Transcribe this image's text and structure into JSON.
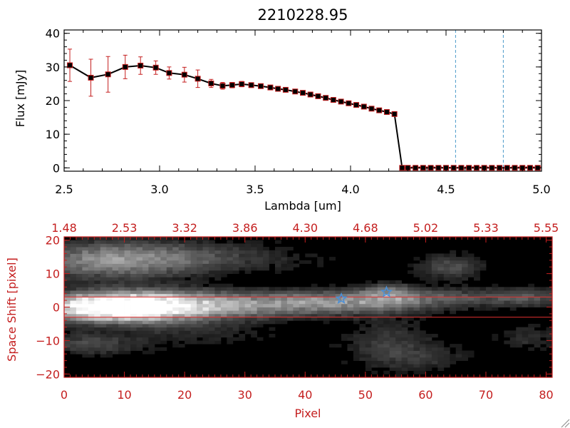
{
  "colors": {
    "axis_top": "#000000",
    "axis_bottom": "#c41e1e",
    "error_bar": "#c41e1e",
    "marker_edge": "#c41e1e",
    "line": "#000000",
    "vline": "#4a9ac9",
    "star": "#4a8fd6",
    "trace_line": "#e03030"
  },
  "chart_data": [
    {
      "type": "line",
      "title": "2210228.95",
      "xlabel": "Lambda [um]",
      "ylabel": "Flux [mJy]",
      "xlim": [
        2.5,
        5.0
      ],
      "ylim": [
        -1,
        41
      ],
      "xticks": [
        2.5,
        3.0,
        3.5,
        4.0,
        4.5,
        5.0
      ],
      "xtick_labels": [
        "2.5",
        "3.0",
        "3.5",
        "4.0",
        "4.5",
        "5.0"
      ],
      "yticks": [
        0,
        10,
        20,
        30,
        40
      ],
      "ytick_labels": [
        "0",
        "10",
        "20",
        "30",
        "40"
      ],
      "grid": false,
      "vlines": [
        4.55,
        4.8
      ],
      "hline": 0.3,
      "series": [
        {
          "x": [
            2.53,
            2.64,
            2.73,
            2.82,
            2.9,
            2.98,
            3.05,
            3.13,
            3.2,
            3.27,
            3.33,
            3.38,
            3.43,
            3.48,
            3.53,
            3.58,
            3.62,
            3.66,
            3.71,
            3.75,
            3.79,
            3.83,
            3.87,
            3.91,
            3.95,
            3.99,
            4.03,
            4.07,
            4.11,
            4.15,
            4.19,
            4.23,
            4.27,
            4.3,
            4.34,
            4.38,
            4.42,
            4.46,
            4.5,
            4.54,
            4.58,
            4.62,
            4.66,
            4.7,
            4.74,
            4.78,
            4.82,
            4.86,
            4.9,
            4.94,
            4.98
          ],
          "y": [
            30.5,
            26.8,
            27.8,
            30.0,
            30.4,
            29.8,
            28.2,
            27.7,
            26.5,
            25.1,
            24.4,
            24.6,
            24.9,
            24.6,
            24.3,
            23.9,
            23.5,
            23.2,
            22.7,
            22.3,
            21.8,
            21.3,
            20.8,
            20.2,
            19.7,
            19.2,
            18.7,
            18.2,
            17.6,
            17.1,
            16.6,
            16.0,
            0,
            0,
            0,
            0,
            0,
            0,
            0,
            0,
            0,
            0,
            0,
            0,
            0,
            0,
            0,
            0,
            0,
            0,
            0
          ],
          "yerr": [
            4.8,
            5.5,
            5.3,
            3.5,
            2.6,
            2.0,
            1.8,
            2.2,
            2.6,
            1.2,
            1.0,
            0.8,
            0.8,
            0.7,
            0.6,
            0.6,
            0.6,
            0.6,
            0.6,
            0.6,
            0.6,
            0.6,
            0.6,
            0.6,
            0.6,
            0.6,
            0.6,
            0.6,
            0.6,
            0.6,
            0.6,
            0.6,
            0,
            0,
            0,
            0,
            0,
            0,
            0,
            0,
            0,
            0,
            0,
            0,
            0,
            0,
            0,
            0,
            0,
            0,
            0
          ]
        }
      ]
    },
    {
      "type": "heatmap",
      "xlabel": "Pixel",
      "ylabel": "Space Shift [pixel]",
      "xlim": [
        0,
        81
      ],
      "ylim": [
        -21,
        21
      ],
      "xticks": [
        0,
        10,
        20,
        30,
        40,
        50,
        60,
        70,
        80
      ],
      "xtick_labels": [
        "0",
        "10",
        "20",
        "30",
        "40",
        "50",
        "60",
        "70",
        "80"
      ],
      "yticks": [
        -20,
        -10,
        0,
        10,
        20
      ],
      "ytick_labels": [
        "−20",
        "−10",
        "0",
        "10",
        "20"
      ],
      "top_axis_ticks": [
        0,
        10,
        20,
        30,
        40,
        50,
        60,
        70,
        80
      ],
      "top_axis_labels": [
        "1.48",
        "2.53",
        "3.32",
        "3.86",
        "4.30",
        "4.68",
        "5.02",
        "5.33",
        "5.55"
      ],
      "trace_lines_y": [
        3,
        -3
      ],
      "stars": [
        {
          "x": 46,
          "y": 2.5
        },
        {
          "x": 53.5,
          "y": 4.5
        }
      ],
      "blobs": [
        {
          "x": 8,
          "y": 0,
          "sx": 7,
          "sy": 2.6,
          "v": 1.0
        },
        {
          "x": 14,
          "y": 0.3,
          "sx": 9,
          "sy": 3.0,
          "v": 0.55
        },
        {
          "x": 30,
          "y": 0.8,
          "sx": 16,
          "sy": 2.4,
          "v": 0.42
        },
        {
          "x": 48,
          "y": 2.0,
          "sx": 9,
          "sy": 2.0,
          "v": 0.26
        },
        {
          "x": 54,
          "y": 4.0,
          "sx": 3,
          "sy": 2.0,
          "v": 0.3
        },
        {
          "x": 66,
          "y": 3.0,
          "sx": 10,
          "sy": 1.8,
          "v": 0.18
        },
        {
          "x": 77,
          "y": 3.0,
          "sx": 4,
          "sy": 1.8,
          "v": 0.15
        },
        {
          "x": 8,
          "y": 14,
          "sx": 9,
          "sy": 3.5,
          "v": 0.42
        },
        {
          "x": 22,
          "y": 15,
          "sx": 12,
          "sy": 3.0,
          "v": 0.16
        },
        {
          "x": 64,
          "y": 12,
          "sx": 3.5,
          "sy": 2.5,
          "v": 0.2
        },
        {
          "x": 4,
          "y": -11,
          "sx": 6,
          "sy": 2.2,
          "v": 0.18
        },
        {
          "x": 54,
          "y": -11,
          "sx": 5,
          "sy": 5.0,
          "v": 0.14
        },
        {
          "x": 22,
          "y": -7,
          "sx": 8,
          "sy": 3.0,
          "v": 0.09
        },
        {
          "x": 60,
          "y": -15,
          "sx": 5,
          "sy": 2.5,
          "v": 0.09
        },
        {
          "x": 77,
          "y": -9,
          "sx": 3.5,
          "sy": 3.0,
          "v": 0.1
        }
      ]
    }
  ]
}
